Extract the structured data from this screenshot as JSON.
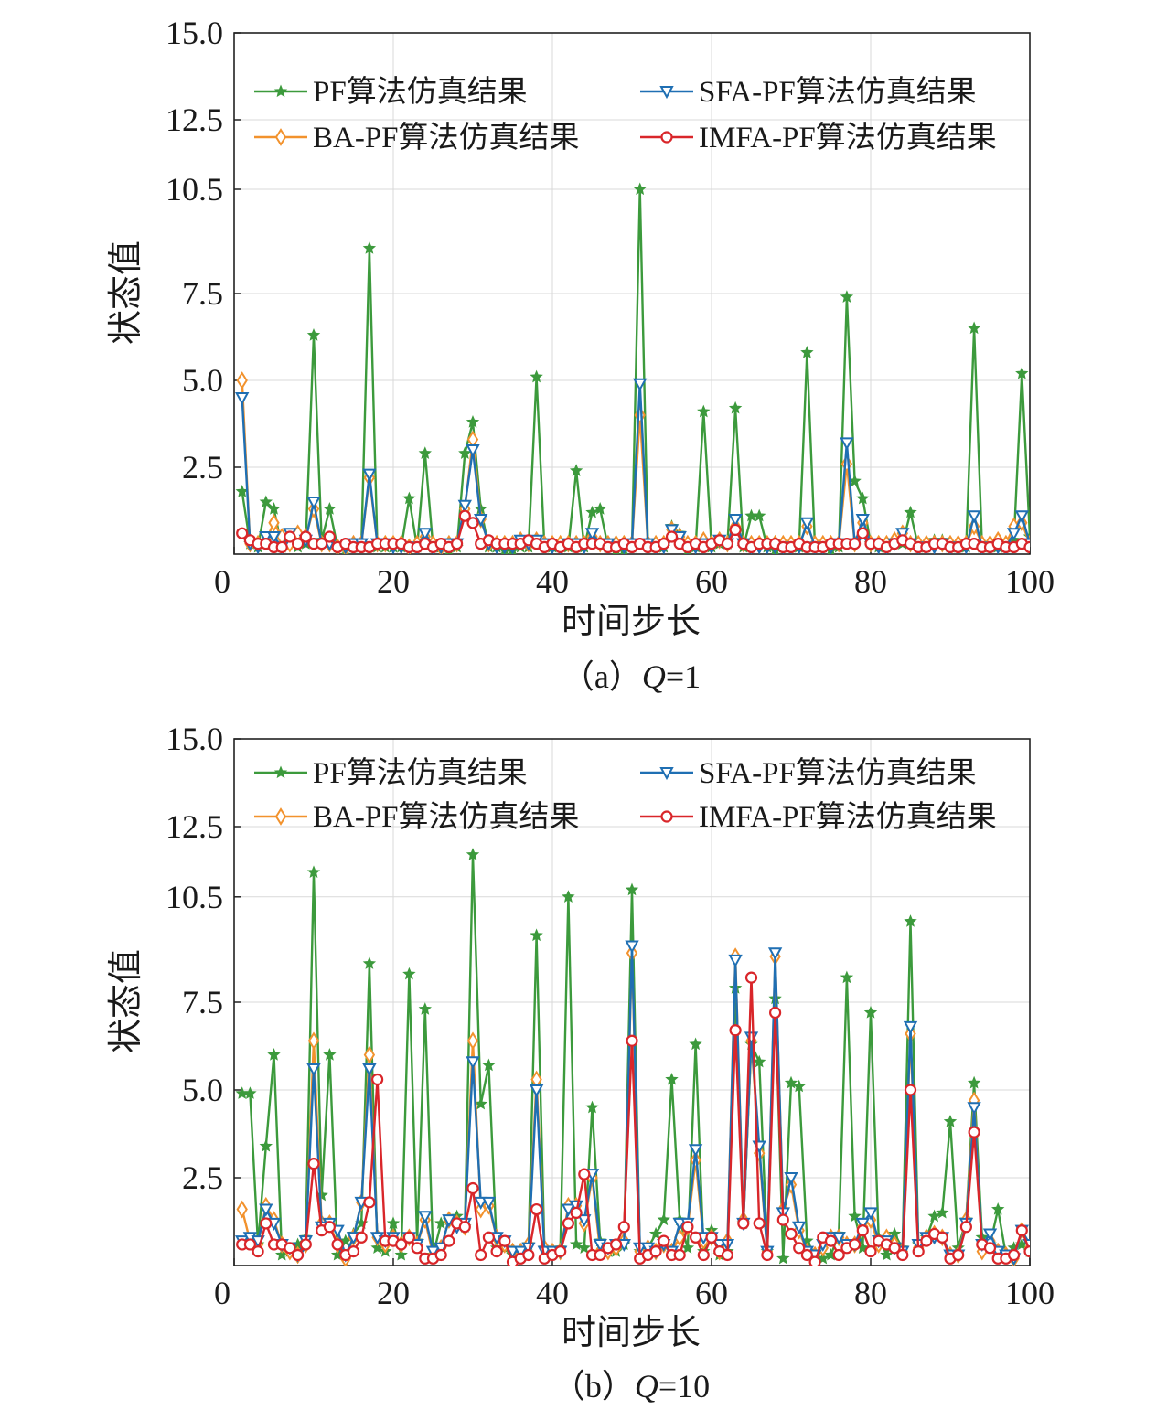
{
  "colors": {
    "PF": "#3c9a3c",
    "BA": "#f2922d",
    "SFA": "#1f6fb3",
    "IMFA": "#d9262a"
  },
  "chart_data": [
    {
      "type": "line",
      "caption_prefix": "（a）",
      "caption_var": "Q",
      "caption_value": "=1",
      "xlabel": "时间步长",
      "ylabel": "状态值",
      "xlim": [
        0,
        100
      ],
      "ylim": [
        0,
        15
      ],
      "xticks": [
        0,
        20,
        40,
        60,
        80,
        100
      ],
      "xtick_labels": [
        "0",
        "20",
        "40",
        "60",
        "80",
        "100"
      ],
      "yticks": [
        2.5,
        5.0,
        7.5,
        10.5,
        12.5,
        15.0
      ],
      "ytick_labels": [
        "2.5",
        "5.0",
        "7.5",
        "10.5",
        "12.5",
        "15.0"
      ],
      "grid": true,
      "legend_position": "top",
      "x": [
        1,
        2,
        3,
        4,
        5,
        6,
        7,
        8,
        9,
        10,
        11,
        12,
        13,
        14,
        15,
        16,
        17,
        18,
        19,
        20,
        21,
        22,
        23,
        24,
        25,
        26,
        27,
        28,
        29,
        30,
        31,
        32,
        33,
        34,
        35,
        36,
        37,
        38,
        39,
        40,
        41,
        42,
        43,
        44,
        45,
        46,
        47,
        48,
        49,
        50,
        51,
        52,
        53,
        54,
        55,
        56,
        57,
        58,
        59,
        60,
        61,
        62,
        63,
        64,
        65,
        66,
        67,
        68,
        69,
        70,
        71,
        72,
        73,
        74,
        75,
        76,
        77,
        78,
        79,
        80,
        81,
        82,
        83,
        84,
        85,
        86,
        87,
        88,
        89,
        90,
        91,
        92,
        93,
        94,
        95,
        96,
        97,
        98,
        99,
        100
      ],
      "series": [
        {
          "name": "PF算法仿真结果",
          "key": "PF",
          "marker": "star",
          "values": [
            1.8,
            0.3,
            0.2,
            1.5,
            1.3,
            0.2,
            0.4,
            0.2,
            0.3,
            6.3,
            0.4,
            1.3,
            0.2,
            0.1,
            0.2,
            0.3,
            8.8,
            0.2,
            0.2,
            0.2,
            0.2,
            1.6,
            0.2,
            2.9,
            0.2,
            0.2,
            0.1,
            0.2,
            2.9,
            3.8,
            1.3,
            0.2,
            0.2,
            0.1,
            0.1,
            0.2,
            0.2,
            5.1,
            0.2,
            0.2,
            0.3,
            0.2,
            2.4,
            0.2,
            1.2,
            1.3,
            0.2,
            0.1,
            0.1,
            0.2,
            10.5,
            0.3,
            0.2,
            0.2,
            0.8,
            0.6,
            0.1,
            0.2,
            4.1,
            0.2,
            0.3,
            0.3,
            4.2,
            0.2,
            1.1,
            1.1,
            0.2,
            0.1,
            0.2,
            0.2,
            0.2,
            5.8,
            0.2,
            0.2,
            0.1,
            0.2,
            7.4,
            2.1,
            1.6,
            0.3,
            0.2,
            0.2,
            0.3,
            0.3,
            1.2,
            0.2,
            0.2,
            0.4,
            0.4,
            0.2,
            0.2,
            0.2,
            6.5,
            0.2,
            0.2,
            0.2,
            0.2,
            0.4,
            5.2,
            0.5
          ]
        },
        {
          "name": "BA-PF算法仿真结果",
          "key": "BA",
          "marker": "diamond",
          "values": [
            5.0,
            0.3,
            0.3,
            0.4,
            0.9,
            0.5,
            0.3,
            0.6,
            0.5,
            1.3,
            0.3,
            0.3,
            0.2,
            0.2,
            0.3,
            0.3,
            2.2,
            0.3,
            0.3,
            0.3,
            0.3,
            0.2,
            0.3,
            0.5,
            0.3,
            0.2,
            0.3,
            0.3,
            1.3,
            3.3,
            1.0,
            0.3,
            0.3,
            0.3,
            0.3,
            0.4,
            0.3,
            0.4,
            0.3,
            0.3,
            0.3,
            0.3,
            0.3,
            0.3,
            0.5,
            0.3,
            0.3,
            0.3,
            0.3,
            0.3,
            4.0,
            0.3,
            0.3,
            0.3,
            0.7,
            0.5,
            0.3,
            0.3,
            0.4,
            0.3,
            0.4,
            0.3,
            0.8,
            0.3,
            0.3,
            0.3,
            0.3,
            0.3,
            0.3,
            0.3,
            0.3,
            0.8,
            0.3,
            0.3,
            0.3,
            0.3,
            2.6,
            0.3,
            0.9,
            0.3,
            0.3,
            0.3,
            0.4,
            0.6,
            0.3,
            0.3,
            0.3,
            0.3,
            0.3,
            0.3,
            0.3,
            0.3,
            0.8,
            0.3,
            0.3,
            0.4,
            0.3,
            0.8,
            0.9,
            0.3
          ]
        },
        {
          "name": "SFA-PF算法仿真结果",
          "key": "SFA",
          "marker": "triangle-down",
          "values": [
            4.5,
            0.3,
            0.2,
            0.5,
            0.5,
            0.2,
            0.6,
            0.3,
            0.4,
            1.5,
            0.3,
            0.3,
            0.2,
            0.2,
            0.3,
            0.3,
            2.3,
            0.3,
            0.3,
            0.2,
            0.2,
            0.2,
            0.2,
            0.6,
            0.2,
            0.2,
            0.3,
            0.3,
            1.4,
            3.0,
            1.0,
            0.3,
            0.2,
            0.2,
            0.2,
            0.4,
            0.3,
            0.4,
            0.3,
            0.2,
            0.2,
            0.3,
            0.3,
            0.2,
            0.6,
            0.3,
            0.3,
            0.2,
            0.2,
            0.3,
            4.9,
            0.3,
            0.2,
            0.2,
            0.7,
            0.5,
            0.2,
            0.2,
            0.3,
            0.2,
            0.4,
            0.3,
            1.0,
            0.3,
            0.2,
            0.2,
            0.2,
            0.2,
            0.2,
            0.2,
            0.2,
            0.9,
            0.2,
            0.2,
            0.2,
            0.3,
            3.2,
            0.3,
            1.0,
            0.3,
            0.2,
            0.2,
            0.3,
            0.6,
            0.3,
            0.2,
            0.2,
            0.2,
            0.3,
            0.2,
            0.2,
            0.2,
            1.1,
            0.2,
            0.2,
            0.2,
            0.2,
            0.6,
            1.1,
            0.3
          ]
        },
        {
          "name": "IMFA-PF算法仿真结果",
          "key": "IMFA",
          "marker": "circle",
          "values": [
            0.6,
            0.4,
            0.3,
            0.3,
            0.2,
            0.2,
            0.5,
            0.3,
            0.5,
            0.3,
            0.3,
            0.5,
            0.2,
            0.3,
            0.2,
            0.2,
            0.2,
            0.3,
            0.3,
            0.3,
            0.3,
            0.2,
            0.2,
            0.3,
            0.2,
            0.3,
            0.2,
            0.3,
            1.1,
            0.9,
            0.3,
            0.4,
            0.3,
            0.3,
            0.3,
            0.3,
            0.4,
            0.3,
            0.2,
            0.3,
            0.2,
            0.3,
            0.2,
            0.3,
            0.3,
            0.3,
            0.2,
            0.2,
            0.3,
            0.2,
            0.3,
            0.2,
            0.2,
            0.3,
            0.5,
            0.3,
            0.2,
            0.3,
            0.2,
            0.3,
            0.4,
            0.3,
            0.7,
            0.3,
            0.2,
            0.3,
            0.3,
            0.3,
            0.2,
            0.2,
            0.3,
            0.2,
            0.2,
            0.2,
            0.3,
            0.3,
            0.3,
            0.3,
            0.6,
            0.3,
            0.3,
            0.2,
            0.3,
            0.4,
            0.3,
            0.2,
            0.2,
            0.3,
            0.3,
            0.2,
            0.2,
            0.3,
            0.3,
            0.2,
            0.2,
            0.3,
            0.2,
            0.2,
            0.3,
            0.2
          ]
        }
      ]
    },
    {
      "type": "line",
      "caption_prefix": "（b）",
      "caption_var": "Q",
      "caption_value": "=10",
      "xlabel": "时间步长",
      "ylabel": "状态值",
      "xlim": [
        0,
        100
      ],
      "ylim": [
        0,
        15
      ],
      "xticks": [
        0,
        20,
        40,
        60,
        80,
        100
      ],
      "xtick_labels": [
        "0",
        "20",
        "40",
        "60",
        "80",
        "100"
      ],
      "yticks": [
        2.5,
        5.0,
        7.5,
        10.5,
        12.5,
        15.0
      ],
      "ytick_labels": [
        "2.5",
        "5.0",
        "7.5",
        "10.5",
        "12.5",
        "15.0"
      ],
      "grid": true,
      "legend_position": "top",
      "x": [
        1,
        2,
        3,
        4,
        5,
        6,
        7,
        8,
        9,
        10,
        11,
        12,
        13,
        14,
        15,
        16,
        17,
        18,
        19,
        20,
        21,
        22,
        23,
        24,
        25,
        26,
        27,
        28,
        29,
        30,
        31,
        32,
        33,
        34,
        35,
        36,
        37,
        38,
        39,
        40,
        41,
        42,
        43,
        44,
        45,
        46,
        47,
        48,
        49,
        50,
        51,
        52,
        53,
        54,
        55,
        56,
        57,
        58,
        59,
        60,
        61,
        62,
        63,
        64,
        65,
        66,
        67,
        68,
        69,
        70,
        71,
        72,
        73,
        74,
        75,
        76,
        77,
        78,
        79,
        80,
        81,
        82,
        83,
        84,
        85,
        86,
        87,
        88,
        89,
        90,
        91,
        92,
        93,
        94,
        95,
        96,
        97,
        98,
        99,
        100
      ],
      "series": [
        {
          "name": "PF算法仿真结果",
          "key": "PF",
          "marker": "star",
          "values": [
            4.9,
            4.9,
            0.6,
            3.4,
            6.0,
            0.3,
            0.4,
            0.6,
            0.8,
            11.2,
            2.0,
            6.0,
            0.3,
            0.7,
            0.9,
            1.2,
            8.6,
            0.5,
            0.4,
            1.2,
            0.3,
            8.3,
            0.7,
            7.3,
            0.3,
            1.2,
            1.3,
            1.4,
            1.1,
            11.7,
            4.6,
            5.7,
            0.5,
            0.5,
            0.3,
            0.3,
            0.6,
            9.4,
            0.5,
            0.4,
            0.5,
            10.5,
            0.6,
            0.5,
            4.5,
            0.7,
            0.4,
            0.4,
            0.6,
            10.7,
            0.4,
            0.5,
            0.9,
            1.3,
            5.3,
            1.3,
            0.5,
            6.3,
            0.4,
            1.0,
            0.3,
            0.4,
            7.9,
            1.2,
            6.3,
            5.8,
            0.4,
            7.6,
            0.2,
            5.2,
            5.1,
            0.7,
            0.3,
            0.2,
            0.3,
            0.9,
            8.2,
            1.4,
            0.5,
            7.2,
            0.8,
            0.3,
            0.9,
            0.5,
            9.8,
            0.6,
            0.8,
            1.4,
            1.5,
            4.1,
            0.5,
            1.3,
            5.2,
            0.8,
            0.6,
            1.6,
            0.3,
            0.5,
            0.6,
            0.4
          ]
        },
        {
          "name": "BA-PF算法仿真结果",
          "key": "BA",
          "marker": "diamond",
          "values": [
            1.6,
            0.7,
            0.6,
            1.7,
            1.3,
            0.6,
            0.4,
            0.3,
            0.6,
            6.4,
            1.2,
            1.2,
            0.6,
            0.2,
            0.8,
            1.8,
            6.0,
            0.8,
            0.6,
            0.8,
            0.6,
            0.8,
            0.6,
            1.3,
            0.3,
            0.5,
            1.3,
            1.2,
            1.1,
            6.4,
            1.6,
            1.7,
            0.8,
            0.6,
            0.4,
            0.4,
            0.6,
            5.3,
            0.5,
            0.4,
            0.4,
            1.7,
            1.7,
            1.2,
            2.5,
            0.4,
            0.4,
            0.5,
            0.7,
            8.9,
            0.4,
            0.5,
            0.4,
            0.6,
            0.4,
            0.8,
            1.1,
            3.0,
            0.7,
            0.8,
            0.4,
            0.7,
            8.8,
            1.3,
            6.4,
            3.2,
            0.4,
            8.8,
            1.6,
            2.3,
            1.0,
            0.4,
            0.3,
            0.5,
            0.8,
            0.8,
            0.6,
            0.6,
            1.1,
            1.3,
            0.6,
            0.8,
            0.6,
            0.4,
            6.6,
            0.5,
            0.8,
            0.9,
            0.8,
            0.3,
            0.3,
            1.3,
            4.7,
            0.4,
            0.7,
            0.4,
            0.3,
            0.2,
            1.0,
            0.5
          ]
        },
        {
          "name": "SFA-PF算法仿真结果",
          "key": "SFA",
          "marker": "triangle-down",
          "values": [
            0.7,
            0.8,
            0.7,
            1.6,
            1.2,
            0.6,
            0.5,
            0.3,
            0.7,
            5.6,
            1.1,
            1.2,
            1.0,
            0.3,
            0.8,
            1.8,
            5.6,
            0.8,
            0.7,
            0.8,
            0.6,
            0.8,
            0.6,
            1.4,
            0.4,
            0.5,
            1.3,
            1.1,
            1.2,
            5.8,
            1.8,
            1.8,
            0.8,
            0.7,
            0.4,
            0.4,
            0.5,
            5.0,
            0.4,
            0.4,
            0.4,
            1.6,
            1.7,
            1.3,
            2.6,
            0.6,
            0.5,
            0.6,
            0.6,
            9.1,
            0.5,
            0.5,
            0.4,
            0.6,
            0.4,
            1.2,
            1.2,
            3.3,
            0.8,
            0.8,
            0.6,
            0.6,
            8.7,
            1.2,
            6.5,
            3.4,
            0.4,
            8.9,
            1.5,
            2.5,
            1.1,
            0.4,
            0.3,
            0.6,
            0.8,
            0.8,
            0.6,
            0.6,
            1.2,
            1.5,
            0.7,
            0.7,
            0.5,
            0.4,
            6.8,
            0.6,
            0.8,
            0.8,
            0.8,
            0.3,
            0.3,
            1.2,
            4.5,
            0.6,
            0.9,
            0.4,
            0.3,
            0.2,
            1.0,
            0.6
          ]
        },
        {
          "name": "IMFA-PF算法仿真结果",
          "key": "IMFA",
          "marker": "circle",
          "values": [
            0.6,
            0.6,
            0.4,
            1.2,
            0.6,
            0.6,
            0.5,
            0.3,
            0.6,
            2.9,
            1.0,
            1.1,
            0.6,
            0.3,
            0.4,
            0.8,
            1.8,
            5.3,
            0.7,
            0.7,
            0.6,
            0.8,
            0.5,
            0.2,
            0.2,
            0.3,
            0.7,
            1.2,
            1.1,
            2.2,
            0.3,
            0.8,
            0.4,
            0.7,
            0.1,
            0.2,
            0.3,
            1.6,
            0.2,
            0.3,
            0.4,
            1.2,
            1.5,
            2.6,
            0.3,
            0.3,
            0.5,
            0.6,
            1.1,
            6.4,
            0.2,
            0.3,
            0.4,
            0.7,
            0.3,
            0.3,
            1.1,
            0.8,
            0.3,
            0.8,
            0.4,
            0.3,
            6.7,
            1.2,
            8.2,
            1.2,
            0.3,
            7.2,
            1.3,
            0.9,
            0.5,
            0.3,
            0.1,
            0.8,
            0.7,
            0.3,
            0.5,
            0.6,
            1.0,
            0.4,
            0.7,
            0.6,
            0.5,
            0.3,
            5.0,
            0.4,
            0.7,
            0.9,
            0.8,
            0.2,
            0.3,
            1.1,
            3.8,
            0.6,
            0.5,
            0.2,
            0.2,
            0.3,
            1.0,
            0.4
          ]
        }
      ]
    }
  ]
}
